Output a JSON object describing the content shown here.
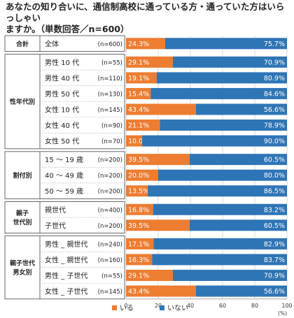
{
  "title_line1": "あなたの知り合いに、通信制高校に通っている方・通っていた方はいらっしゃい",
  "title_line2": "ますか。（単数回答／n=600）",
  "chart_data": {
    "type": "bar",
    "orientation": "horizontal",
    "stacked": true,
    "xlim": [
      0,
      100
    ],
    "xticks": [
      0,
      20,
      40,
      60,
      80,
      100
    ],
    "xunit": "(%)",
    "groups": [
      {
        "label": "合計",
        "rows": [
          0
        ]
      },
      {
        "label": "性年代別",
        "rows": [
          1,
          2,
          3,
          4,
          5,
          6
        ]
      },
      {
        "label": "割付別",
        "rows": [
          7,
          8,
          9
        ]
      },
      {
        "label": "親子\n世代別",
        "rows": [
          10,
          11
        ]
      },
      {
        "label": "親子世代\n男女別",
        "rows": [
          12,
          13,
          14,
          15
        ]
      }
    ],
    "categories": [
      "全体",
      "男性 10 代",
      "男性 40 代",
      "男性 50 代",
      "女性 10 代",
      "女性 40 代",
      "女性 50 代",
      "15 ～ 19 歳",
      "40 ～ 49 歳",
      "50 ～ 59 歳",
      "親世代",
      "子世代",
      "男性 _ 親世代",
      "女性 _ 親世代",
      "男性 _ 子世代",
      "女性 _ 子世代"
    ],
    "n": [
      "(n=600)",
      "(n=55)",
      "(n=110)",
      "(n=130)",
      "(n=145)",
      "(n=90)",
      "(n=70)",
      "(n=200)",
      "(n=200)",
      "(n=200)",
      "(n=400)",
      "(n=200)",
      "(n=240)",
      "(n=160)",
      "(n=55)",
      "(n=145)"
    ],
    "series": [
      {
        "name": "いる",
        "color": "#ed7d31",
        "values": [
          24.3,
          29.1,
          19.1,
          15.4,
          43.4,
          21.1,
          10.0,
          39.5,
          20.0,
          13.5,
          16.8,
          39.5,
          17.1,
          16.3,
          29.1,
          43.4
        ]
      },
      {
        "name": "いない",
        "color": "#2e75b6",
        "values": [
          75.7,
          70.9,
          80.9,
          84.6,
          56.6,
          78.9,
          90.0,
          60.5,
          80.0,
          86.5,
          83.2,
          60.5,
          82.9,
          83.7,
          70.9,
          56.6
        ]
      }
    ]
  }
}
